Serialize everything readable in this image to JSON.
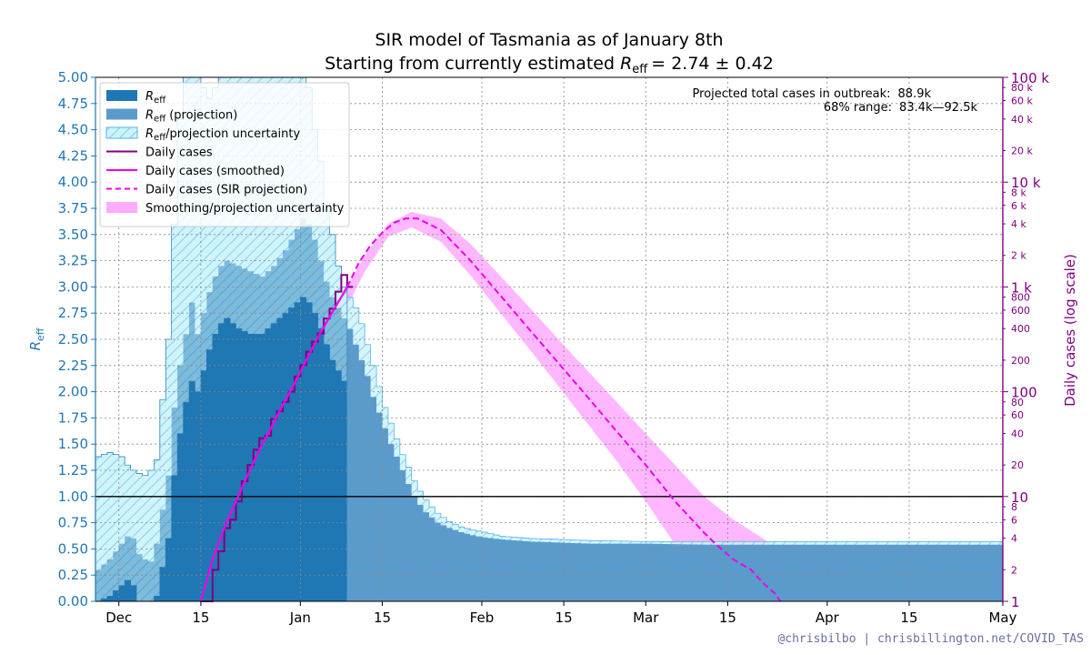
{
  "chart_data": {
    "type": "area",
    "title_line1": "SIR model of Tasmania as of January 8th",
    "title_line2_prefix": "Starting from currently estimated ",
    "title_line2_value": "= 2.74 ± 0.42",
    "reff_symbol": "R",
    "reff_subscript": "eff",
    "left_axis": {
      "label": "R",
      "label_sub": "eff",
      "range": [
        0,
        5
      ],
      "ticks": [
        "0.00",
        "0.25",
        "0.50",
        "0.75",
        "1.00",
        "1.25",
        "1.50",
        "1.75",
        "2.00",
        "2.25",
        "2.50",
        "2.75",
        "3.00",
        "3.25",
        "3.50",
        "3.75",
        "4.00",
        "4.25",
        "4.50",
        "4.75",
        "5.00"
      ]
    },
    "right_axis": {
      "label": "Daily cases (log scale)",
      "range": [
        1,
        100000
      ],
      "scale": "log",
      "major_ticks": [
        {
          "v": 1,
          "t": "1"
        },
        {
          "v": 10,
          "t": "10"
        },
        {
          "v": 100,
          "t": "100"
        },
        {
          "v": 1000,
          "t": "1 k"
        },
        {
          "v": 10000,
          "t": "10 k"
        },
        {
          "v": 100000,
          "t": "100 k"
        }
      ],
      "minor_ticks": [
        {
          "v": 2,
          "t": "2"
        },
        {
          "v": 4,
          "t": "4"
        },
        {
          "v": 6,
          "t": "6"
        },
        {
          "v": 8,
          "t": "8"
        },
        {
          "v": 20,
          "t": "20"
        },
        {
          "v": 40,
          "t": "40"
        },
        {
          "v": 60,
          "t": "60"
        },
        {
          "v": 80,
          "t": "80"
        },
        {
          "v": 200,
          "t": "200"
        },
        {
          "v": 400,
          "t": "400"
        },
        {
          "v": 600,
          "t": "600"
        },
        {
          "v": 800,
          "t": "800"
        },
        {
          "v": 2000,
          "t": "2 k"
        },
        {
          "v": 4000,
          "t": "4 k"
        },
        {
          "v": 6000,
          "t": "6 k"
        },
        {
          "v": 8000,
          "t": "8 k"
        },
        {
          "v": 20000,
          "t": "20 k"
        },
        {
          "v": 40000,
          "t": "40 k"
        },
        {
          "v": 60000,
          "t": "60 k"
        },
        {
          "v": 80000,
          "t": "80 k"
        }
      ]
    },
    "x_axis": {
      "unit": "days since Dec 1",
      "range": [
        -4,
        151
      ],
      "ticks": [
        {
          "d": 0,
          "t": "Dec"
        },
        {
          "d": 14,
          "t": "15"
        },
        {
          "d": 31,
          "t": "Jan"
        },
        {
          "d": 45,
          "t": "15"
        },
        {
          "d": 62,
          "t": "Feb"
        },
        {
          "d": 76,
          "t": "15"
        },
        {
          "d": 90,
          "t": "Mar"
        },
        {
          "d": 104,
          "t": "15"
        },
        {
          "d": 121,
          "t": "Apr"
        },
        {
          "d": 135,
          "t": "15"
        },
        {
          "d": 151,
          "t": "May"
        }
      ]
    },
    "reference_line": {
      "y": 1.0
    },
    "last_data_day": 39,
    "series": [
      {
        "name": "R_eff (estimated and projection)",
        "x": [
          -4,
          -2,
          0,
          1,
          2,
          3,
          4,
          5,
          6,
          8,
          9,
          10,
          11,
          12,
          13,
          14,
          15,
          16,
          17,
          18,
          20,
          22,
          24,
          26,
          28,
          30,
          31,
          32,
          33,
          34,
          35,
          36,
          37,
          38,
          39,
          40,
          41,
          42,
          43,
          44,
          45,
          46,
          47,
          48,
          49,
          50,
          51,
          52,
          53,
          54,
          56,
          58,
          60,
          62,
          65,
          70,
          75,
          80,
          90,
          100,
          110,
          120,
          130,
          140,
          151
        ],
        "values": [
          0.3,
          0.4,
          0.55,
          0.62,
          0.6,
          0.45,
          0.4,
          0.38,
          0.55,
          1.2,
          1.85,
          2.25,
          2.55,
          2.85,
          2.55,
          2.75,
          2.95,
          3.1,
          3.2,
          3.25,
          3.2,
          3.15,
          3.1,
          3.2,
          3.35,
          3.55,
          3.65,
          3.6,
          3.45,
          3.25,
          3.05,
          2.9,
          2.8,
          2.7,
          2.6,
          2.45,
          2.3,
          2.15,
          1.95,
          1.8,
          1.65,
          1.5,
          1.38,
          1.25,
          1.12,
          1.0,
          0.92,
          0.85,
          0.8,
          0.75,
          0.7,
          0.66,
          0.63,
          0.61,
          0.59,
          0.57,
          0.56,
          0.55,
          0.55,
          0.54,
          0.54,
          0.54,
          0.54,
          0.54,
          0.54
        ]
      },
      {
        "name": "R_eff upper uncertainty",
        "x": [
          -4,
          -2,
          0,
          1,
          2,
          3,
          4,
          5,
          6,
          8,
          9,
          10,
          11,
          12,
          13,
          14,
          15,
          16,
          17,
          18,
          20,
          22,
          24,
          26,
          28,
          30,
          31,
          32,
          33,
          34,
          35,
          36,
          37,
          38,
          39,
          40,
          41,
          42,
          43,
          44,
          45,
          46,
          47,
          48,
          49,
          50,
          51,
          52,
          53,
          54,
          56,
          58,
          60,
          62,
          65,
          70,
          75,
          80,
          90,
          100,
          110,
          120,
          130,
          140,
          151
        ],
        "values": [
          1.38,
          1.42,
          1.38,
          1.3,
          1.25,
          1.22,
          1.2,
          1.25,
          1.35,
          2.5,
          3.6,
          4.6,
          5.0,
          5.0,
          5.0,
          4.9,
          4.8,
          4.9,
          5.0,
          5.0,
          5.0,
          5.0,
          5.0,
          5.0,
          5.0,
          5.0,
          5.0,
          4.9,
          4.5,
          4.2,
          3.8,
          3.5,
          3.2,
          3.0,
          2.9,
          2.8,
          2.65,
          2.45,
          2.25,
          2.05,
          1.85,
          1.7,
          1.55,
          1.4,
          1.28,
          1.15,
          1.05,
          0.97,
          0.9,
          0.84,
          0.76,
          0.71,
          0.68,
          0.66,
          0.62,
          0.6,
          0.59,
          0.58,
          0.57,
          0.57,
          0.57,
          0.57,
          0.57,
          0.57,
          0.57
        ]
      },
      {
        "name": "R_eff lower uncertainty",
        "x": [
          -4,
          -2,
          0,
          1,
          2,
          3,
          4,
          5,
          6,
          8,
          9,
          10,
          11,
          12,
          13,
          14,
          15,
          16,
          17,
          18,
          20,
          22,
          24,
          26,
          28,
          30,
          31,
          32,
          33,
          34,
          35,
          36,
          37,
          38,
          39,
          40,
          41,
          42,
          43,
          44,
          45,
          46,
          47,
          48,
          49,
          50,
          51,
          52,
          53,
          54,
          56,
          58,
          60,
          62,
          65,
          70,
          75,
          80,
          90,
          100,
          110,
          120,
          130,
          140,
          151
        ],
        "values": [
          0.0,
          0.05,
          0.15,
          0.2,
          0.15,
          0.0,
          0.0,
          0.0,
          0.05,
          0.6,
          1.2,
          1.6,
          1.9,
          2.1,
          2.0,
          2.2,
          2.4,
          2.55,
          2.65,
          2.7,
          2.6,
          2.55,
          2.55,
          2.65,
          2.75,
          2.85,
          2.9,
          2.85,
          2.75,
          2.6,
          2.45,
          2.3,
          2.2,
          2.1,
          2.0,
          1.9,
          1.8,
          1.68,
          1.55,
          1.42,
          1.3,
          1.18,
          1.05,
          0.95,
          0.85,
          0.78,
          0.72,
          0.67,
          0.63,
          0.6,
          0.57,
          0.55,
          0.53,
          0.52,
          0.51,
          0.5,
          0.5,
          0.5,
          0.5,
          0.5,
          0.5,
          0.5,
          0.5,
          0.5,
          0.5
        ]
      },
      {
        "name": "Daily cases",
        "x": [
          14,
          15,
          16,
          17,
          18,
          19,
          20,
          21,
          22,
          23,
          24,
          25,
          26,
          27,
          28,
          29,
          30,
          31,
          32,
          33,
          34,
          35,
          36,
          37,
          38,
          39
        ],
        "values": [
          1,
          1,
          2,
          3,
          5,
          6,
          9,
          14,
          20,
          28,
          36,
          38,
          55,
          65,
          80,
          100,
          140,
          180,
          240,
          300,
          360,
          500,
          620,
          900,
          1300,
          1000
        ]
      },
      {
        "name": "Daily cases (smoothed)",
        "x": [
          14,
          16,
          18,
          20,
          22,
          24,
          26,
          28,
          30,
          32,
          34,
          36,
          38,
          39
        ],
        "values": [
          1,
          2.5,
          5,
          9,
          16,
          28,
          45,
          75,
          120,
          200,
          330,
          520,
          800,
          1000
        ]
      },
      {
        "name": "Daily cases (SIR projection)",
        "x": [
          39,
          41,
          43,
          45,
          47,
          49,
          51,
          55,
          60,
          65,
          70,
          75,
          80,
          85,
          90,
          95,
          100,
          102,
          105,
          108,
          110,
          112,
          113
        ],
        "values": [
          1000,
          1700,
          2500,
          3300,
          4100,
          4500,
          4500,
          3500,
          1800,
          850,
          400,
          190,
          90,
          42,
          20,
          9,
          4.5,
          3.5,
          2.5,
          2.0,
          1.5,
          1.2,
          1.0
        ]
      },
      {
        "name": "Smoothing/projection uncertainty upper",
        "x": [
          -4,
          0,
          5,
          10,
          14,
          18,
          22,
          26,
          30,
          34,
          38,
          42,
          46,
          50,
          55,
          60,
          65,
          70,
          75,
          80,
          85,
          90,
          95,
          100,
          105,
          110,
          115,
          120,
          121
        ],
        "values": [
          2.3,
          2.3,
          2.4,
          2.6,
          3.5,
          7,
          18,
          45,
          110,
          300,
          800,
          2000,
          4000,
          5200,
          4500,
          2600,
          1300,
          650,
          320,
          160,
          80,
          40,
          20,
          10,
          6,
          4,
          2.5,
          1.5,
          1.0
        ]
      },
      {
        "name": "Smoothing/projection uncertainty lower",
        "x": [
          -4,
          0,
          5,
          10,
          14,
          18,
          22,
          26,
          30,
          34,
          38,
          42,
          46,
          50,
          55,
          60,
          65,
          70,
          75,
          80,
          85,
          90,
          95,
          100,
          103
        ],
        "values": [
          1,
          1,
          1,
          1,
          1,
          2.5,
          8,
          22,
          60,
          180,
          500,
          1400,
          3000,
          3700,
          2700,
          1300,
          580,
          260,
          115,
          50,
          22,
          9,
          3.5,
          1.4,
          1.0
        ]
      }
    ],
    "legend": [
      {
        "kind": "fill",
        "sym": "R",
        "sub": "eff",
        "text": ""
      },
      {
        "kind": "fill-proj",
        "sym": "R",
        "sub": "eff",
        "text": " (projection)"
      },
      {
        "kind": "hatch",
        "sym": "R",
        "sub": "eff",
        "text": "/projection uncertainty"
      },
      {
        "kind": "line-purple",
        "sym": "",
        "sub": "",
        "text": "Daily cases"
      },
      {
        "kind": "line-magenta",
        "sym": "",
        "sub": "",
        "text": "Daily cases (smoothed)"
      },
      {
        "kind": "dash-magenta",
        "sym": "",
        "sub": "",
        "text": "Daily cases (SIR projection)"
      },
      {
        "kind": "fill-pink",
        "sym": "",
        "sub": "",
        "text": "Smoothing/projection uncertainty"
      }
    ],
    "annotation_line1_label": "Projected total cases in outbreak:",
    "annotation_line1_value": "88.9k",
    "annotation_line2_label": "68% range:",
    "annotation_line2_value": "83.4k—92.5k",
    "credit": "@chrisbilbo | chrisbillington.net/COVID_TAS",
    "colors": {
      "reff": "#1f77b4",
      "reff_projection": "#5b9bcc",
      "uncertainty": "#c8f0fa",
      "uncertainty_hatch": "#56b4e9",
      "daily": "#800080",
      "smoothed": "#ee00ee",
      "pink_band": "#ff88ff",
      "left_axis": "#1f77b4",
      "right_axis": "#800080"
    }
  }
}
